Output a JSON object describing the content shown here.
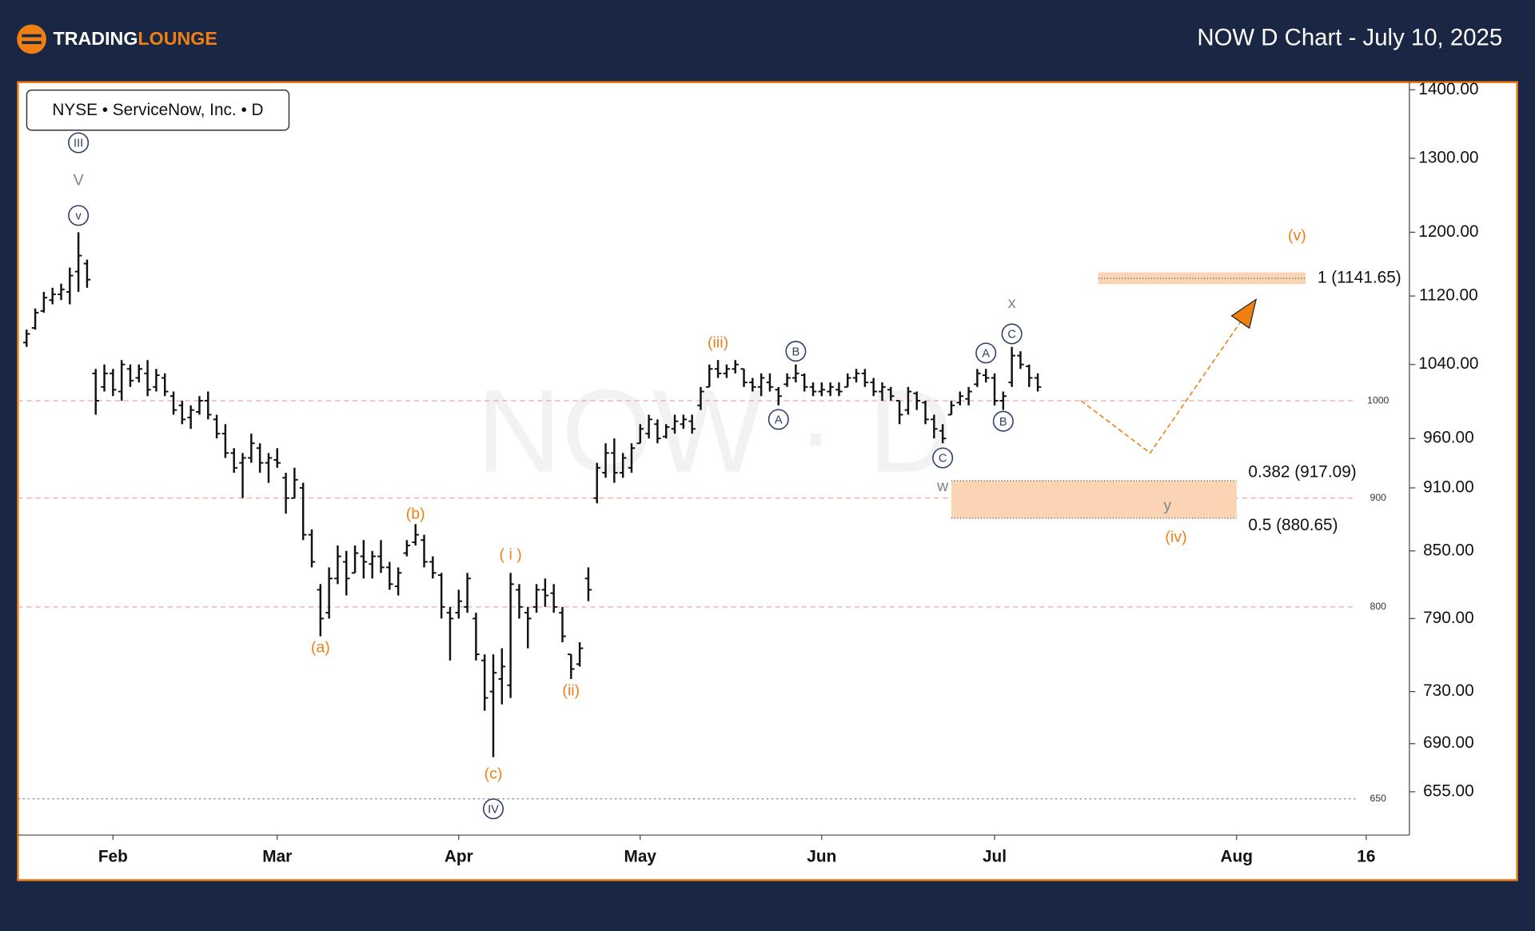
{
  "header": {
    "brand": [
      "TRADING",
      "LOUNGE"
    ],
    "title": "NOW D Chart - July 10, 2025"
  },
  "chart_data": {
    "type": "ohlc",
    "legend_text": "NYSE • ServiceNow, Inc. • D",
    "watermark": "NOW · D",
    "yscale": "log",
    "ylim": [
      625,
      1410
    ],
    "yticks": [
      {
        "value": 1400,
        "label": "1400.00"
      },
      {
        "value": 1300,
        "label": "1300.00"
      },
      {
        "value": 1200,
        "label": "1200.00"
      },
      {
        "value": 1120,
        "label": "1120.00"
      },
      {
        "value": 1040,
        "label": "1040.00"
      },
      {
        "value": 960,
        "label": "960.00"
      },
      {
        "value": 910,
        "label": "910.00"
      },
      {
        "value": 850,
        "label": "850.00"
      },
      {
        "value": 790,
        "label": "790.00"
      },
      {
        "value": 730,
        "label": "730.00"
      },
      {
        "value": 690,
        "label": "690.00"
      },
      {
        "value": 655,
        "label": "655.00"
      }
    ],
    "xlim": [
      -1,
      160
    ],
    "xticks": [
      {
        "value": 10,
        "label": "Feb"
      },
      {
        "value": 29,
        "label": "Mar"
      },
      {
        "value": 50,
        "label": "Apr"
      },
      {
        "value": 71,
        "label": "May"
      },
      {
        "value": 92,
        "label": "Jun"
      },
      {
        "value": 112,
        "label": "Jul"
      },
      {
        "value": 140,
        "label": "Aug"
      },
      {
        "value": 155,
        "label": "16"
      }
    ],
    "color": "#111111",
    "bars": [
      [
        1065,
        1080,
        1060,
        1075
      ],
      [
        1082,
        1105,
        1080,
        1100
      ],
      [
        1102,
        1125,
        1100,
        1118
      ],
      [
        1115,
        1130,
        1110,
        1122
      ],
      [
        1122,
        1135,
        1115,
        1128
      ],
      [
        1125,
        1155,
        1110,
        1145
      ],
      [
        1150,
        1200,
        1125,
        1170
      ],
      [
        1160,
        1165,
        1130,
        1140
      ],
      [
        1030,
        1035,
        985,
        1000
      ],
      [
        1015,
        1040,
        1010,
        1030
      ],
      [
        1030,
        1035,
        1005,
        1012
      ],
      [
        1010,
        1045,
        1000,
        1040
      ],
      [
        1035,
        1040,
        1015,
        1022
      ],
      [
        1025,
        1040,
        1020,
        1035
      ],
      [
        1030,
        1045,
        1005,
        1012
      ],
      [
        1015,
        1035,
        1010,
        1028
      ],
      [
        1025,
        1030,
        1005,
        1010
      ],
      [
        1005,
        1010,
        985,
        990
      ],
      [
        995,
        1000,
        975,
        980
      ],
      [
        982,
        995,
        970,
        990
      ],
      [
        988,
        1005,
        985,
        1000
      ],
      [
        1000,
        1010,
        980,
        985
      ],
      [
        980,
        985,
        960,
        965
      ],
      [
        965,
        975,
        940,
        945
      ],
      [
        945,
        950,
        925,
        930
      ],
      [
        935,
        945,
        900,
        940
      ],
      [
        940,
        965,
        935,
        955
      ],
      [
        950,
        955,
        925,
        935
      ],
      [
        935,
        945,
        915,
        940
      ],
      [
        938,
        950,
        930,
        935
      ],
      [
        920,
        925,
        885,
        900
      ],
      [
        900,
        930,
        900,
        918
      ],
      [
        910,
        915,
        860,
        865
      ],
      [
        865,
        870,
        835,
        840
      ],
      [
        815,
        820,
        775,
        790
      ],
      [
        795,
        835,
        790,
        825
      ],
      [
        825,
        855,
        820,
        845
      ],
      [
        840,
        850,
        810,
        825
      ],
      [
        830,
        855,
        830,
        848
      ],
      [
        845,
        860,
        825,
        840
      ],
      [
        838,
        850,
        825,
        845
      ],
      [
        845,
        860,
        830,
        835
      ],
      [
        835,
        840,
        815,
        820
      ],
      [
        818,
        835,
        810,
        830
      ],
      [
        848,
        860,
        845,
        855
      ],
      [
        858,
        875,
        855,
        865
      ],
      [
        860,
        865,
        835,
        840
      ],
      [
        840,
        845,
        825,
        830
      ],
      [
        828,
        830,
        790,
        800
      ],
      [
        795,
        800,
        755,
        790
      ],
      [
        795,
        815,
        790,
        805
      ],
      [
        800,
        830,
        795,
        825
      ],
      [
        790,
        795,
        755,
        760
      ],
      [
        755,
        760,
        715,
        725
      ],
      [
        730,
        760,
        680,
        745
      ],
      [
        740,
        765,
        720,
        750
      ],
      [
        735,
        830,
        725,
        820
      ],
      [
        815,
        820,
        790,
        800
      ],
      [
        795,
        800,
        765,
        790
      ],
      [
        800,
        820,
        795,
        815
      ],
      [
        815,
        825,
        800,
        810
      ],
      [
        812,
        820,
        795,
        800
      ],
      [
        795,
        800,
        770,
        775
      ],
      [
        760,
        760,
        740,
        748
      ],
      [
        752,
        770,
        750,
        765
      ],
      [
        825,
        835,
        805,
        815
      ],
      [
        900,
        935,
        895,
        930
      ],
      [
        925,
        955,
        920,
        945
      ],
      [
        945,
        960,
        915,
        925
      ],
      [
        925,
        945,
        920,
        940
      ],
      [
        930,
        955,
        925,
        950
      ],
      [
        955,
        975,
        955,
        970
      ],
      [
        965,
        985,
        960,
        980
      ],
      [
        975,
        980,
        955,
        960
      ],
      [
        962,
        975,
        960,
        972
      ],
      [
        970,
        985,
        965,
        978
      ],
      [
        975,
        985,
        970,
        980
      ],
      [
        978,
        985,
        965,
        970
      ],
      [
        995,
        1015,
        990,
        1010
      ],
      [
        1015,
        1040,
        1015,
        1035
      ],
      [
        1035,
        1045,
        1025,
        1030
      ],
      [
        1030,
        1040,
        1025,
        1035
      ],
      [
        1035,
        1045,
        1030,
        1040
      ],
      [
        1035,
        1035,
        1015,
        1020
      ],
      [
        1020,
        1025,
        1010,
        1015
      ],
      [
        1015,
        1030,
        1005,
        1025
      ],
      [
        1020,
        1030,
        1010,
        1015
      ],
      [
        1012,
        1015,
        995,
        1005
      ],
      [
        1018,
        1030,
        1015,
        1025
      ],
      [
        1025,
        1040,
        1020,
        1030
      ],
      [
        1028,
        1030,
        1010,
        1015
      ],
      [
        1015,
        1020,
        1005,
        1010
      ],
      [
        1010,
        1020,
        1005,
        1012
      ],
      [
        1010,
        1020,
        1005,
        1015
      ],
      [
        1012,
        1020,
        1005,
        1010
      ],
      [
        1015,
        1030,
        1015,
        1025
      ],
      [
        1025,
        1035,
        1020,
        1030
      ],
      [
        1030,
        1035,
        1015,
        1020
      ],
      [
        1020,
        1025,
        1005,
        1010
      ],
      [
        1010,
        1020,
        1000,
        1015
      ],
      [
        1012,
        1015,
        1000,
        1005
      ],
      [
        1000,
        1000,
        975,
        985
      ],
      [
        990,
        1015,
        985,
        1010
      ],
      [
        1008,
        1010,
        990,
        1000
      ],
      [
        998,
        1000,
        975,
        980
      ],
      [
        980,
        985,
        960,
        970
      ],
      [
        968,
        975,
        955,
        960
      ],
      [
        985,
        1000,
        985,
        995
      ],
      [
        998,
        1010,
        995,
        1005
      ],
      [
        1002,
        1015,
        995,
        1010
      ],
      [
        1018,
        1035,
        1015,
        1030
      ],
      [
        1028,
        1035,
        1020,
        1025
      ],
      [
        1025,
        1030,
        995,
        1000
      ],
      [
        1000,
        1010,
        990,
        1005
      ],
      [
        1020,
        1060,
        1015,
        1050
      ],
      [
        1050,
        1055,
        1035,
        1040
      ],
      [
        1038,
        1040,
        1015,
        1025
      ],
      [
        1025,
        1030,
        1010,
        1015
      ]
    ],
    "reference_lines": [
      1000,
      900,
      800
    ],
    "support_lines": [
      650
    ],
    "fib_levels": [
      {
        "label": "1 (1141.65)",
        "value": 1141.65,
        "from": 124,
        "to": 148
      },
      {
        "label": "0.382 (917.09)",
        "value": 917.09,
        "from": 107,
        "to": 140
      },
      {
        "label": "0.5 (880.65)",
        "value": 880.65,
        "from": 107,
        "to": 140
      }
    ],
    "projection": {
      "x": [
        122,
        130,
        142
      ],
      "y": [
        1000,
        945,
        1112
      ],
      "color": "#f07f13"
    },
    "annotations": [
      {
        "text": "III",
        "x": 6,
        "y": 1322,
        "color": "#2f3f6b",
        "circled": true
      },
      {
        "text": "V",
        "x": 6,
        "y": 1270,
        "color": "#7d8290",
        "circled": false
      },
      {
        "text": "v",
        "x": 6,
        "y": 1222,
        "color": "#2f3f6b",
        "circled": true
      },
      {
        "text": "(b)",
        "x": 45,
        "y": 885,
        "color": "#f07f13",
        "circled": false
      },
      {
        "text": "(a)",
        "x": 34,
        "y": 766,
        "color": "#f07f13",
        "circled": false
      },
      {
        "text": "( i )",
        "x": 56,
        "y": 847,
        "color": "#f07f13",
        "circled": false
      },
      {
        "text": "(ii)",
        "x": 63,
        "y": 731,
        "color": "#f07f13",
        "circled": false
      },
      {
        "text": "(c)",
        "x": 54,
        "y": 668,
        "color": "#f07f13",
        "circled": false
      },
      {
        "text": "IV",
        "x": 54,
        "y": 643,
        "color": "#2f3f6b",
        "circled": true
      },
      {
        "text": "(iii)",
        "x": 80,
        "y": 1065,
        "color": "#f07f13",
        "circled": false
      },
      {
        "text": "B",
        "x": 89,
        "y": 1055,
        "color": "#2f3f6b",
        "circled": true
      },
      {
        "text": "A",
        "x": 87,
        "y": 980,
        "color": "#2f3f6b",
        "circled": true
      },
      {
        "text": "C",
        "x": 106,
        "y": 940,
        "color": "#2f3f6b",
        "circled": true
      },
      {
        "text": "w",
        "x": 106,
        "y": 912,
        "color": "#7d8290",
        "circled": false
      },
      {
        "text": "A",
        "x": 111,
        "y": 1053,
        "color": "#2f3f6b",
        "circled": true
      },
      {
        "text": "B",
        "x": 113,
        "y": 978,
        "color": "#2f3f6b",
        "circled": true
      },
      {
        "text": "C",
        "x": 114,
        "y": 1075,
        "color": "#2f3f6b",
        "circled": true
      },
      {
        "text": "x",
        "x": 114,
        "y": 1112,
        "color": "#7d8290",
        "circled": false
      },
      {
        "text": "y",
        "x": 132,
        "y": 893,
        "color": "#7d8290",
        "circled": false
      },
      {
        "text": "(iv)",
        "x": 133,
        "y": 863,
        "color": "#f07f13",
        "circled": false
      },
      {
        "text": "(v)",
        "x": 147,
        "y": 1196,
        "color": "#f07f13",
        "circled": false
      }
    ]
  }
}
